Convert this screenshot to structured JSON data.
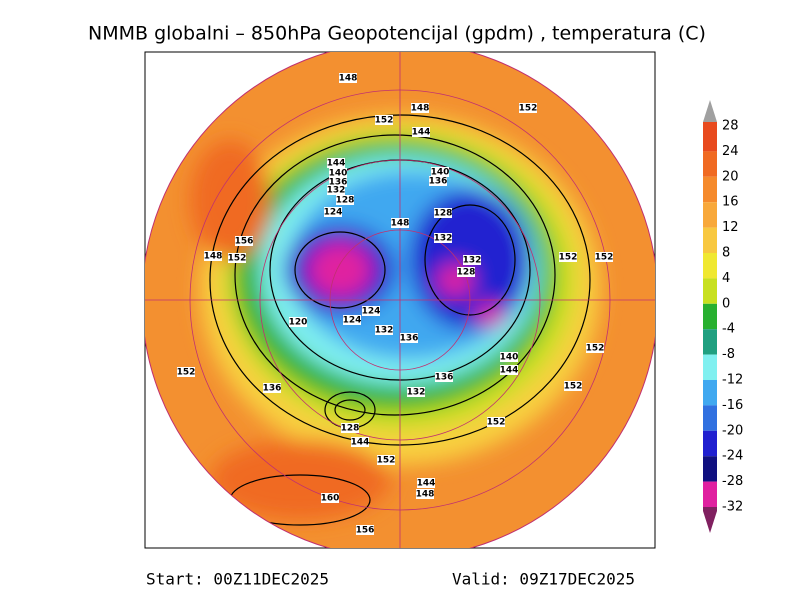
{
  "header": {
    "title": "NMMB globalni – 850hPa Geopotencijal (gpdm) , temperatura (C)"
  },
  "contour_labels": [
    "148",
    "148",
    "152",
    "152",
    "144",
    "144",
    "140",
    "136",
    "132",
    "128",
    "124",
    "140",
    "136",
    "128",
    "148",
    "132",
    "156",
    "148",
    "152",
    "132",
    "128",
    "152",
    "152",
    "124",
    "120",
    "124",
    "132",
    "136",
    "140",
    "144",
    "152",
    "152",
    "136",
    "136",
    "132",
    "152",
    "128",
    "144",
    "152",
    "152",
    "144",
    "148",
    "160",
    "156"
  ],
  "colorbar": {
    "ticks": [
      28,
      24,
      20,
      16,
      12,
      8,
      4,
      0,
      -4,
      -8,
      -12,
      -16,
      -20,
      -24,
      -28,
      -32
    ],
    "colors": [
      "#a0a0a0",
      "#e84a1e",
      "#f06a22",
      "#f58a2c",
      "#f8a83a",
      "#f8c840",
      "#f0e830",
      "#c8e020",
      "#28b030",
      "#20a080",
      "#80f0f0",
      "#40a8f0",
      "#3070e0",
      "#2020d0",
      "#101080",
      "#e020a0",
      "#802060"
    ]
  },
  "footer": {
    "start": "Start: 00Z11DEC2025",
    "valid": "Valid: 09Z17DEC2025"
  }
}
